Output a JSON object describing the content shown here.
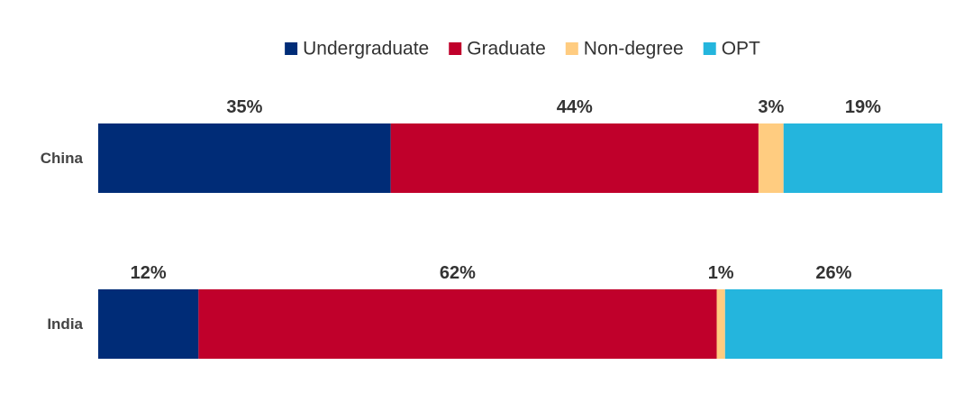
{
  "chart_data": {
    "type": "bar",
    "orientation": "horizontal",
    "stacked": true,
    "normalized": true,
    "categories": [
      "China",
      "India"
    ],
    "series": [
      {
        "name": "Undergraduate",
        "color": "#002C77",
        "values": [
          35,
          12
        ],
        "labels": [
          "35%",
          "12%"
        ]
      },
      {
        "name": "Graduate",
        "color": "#C0002B",
        "values": [
          44,
          62
        ],
        "labels": [
          "44%",
          "62%"
        ]
      },
      {
        "name": "Non-degree",
        "color": "#FFCC80",
        "values": [
          3,
          1
        ],
        "labels": [
          "3%",
          "1%"
        ]
      },
      {
        "name": "OPT",
        "color": "#24B5DD",
        "values": [
          19,
          26
        ],
        "labels": [
          "19%",
          "26%"
        ]
      }
    ],
    "value_format": "percent",
    "xlim": [
      0,
      100
    ],
    "legend_position": "top-center",
    "grid": false,
    "title": "",
    "xlabel": "",
    "ylabel": ""
  },
  "colors": {
    "label_text": "#333333",
    "category_text": "#444444",
    "legend_text": "#333333"
  }
}
